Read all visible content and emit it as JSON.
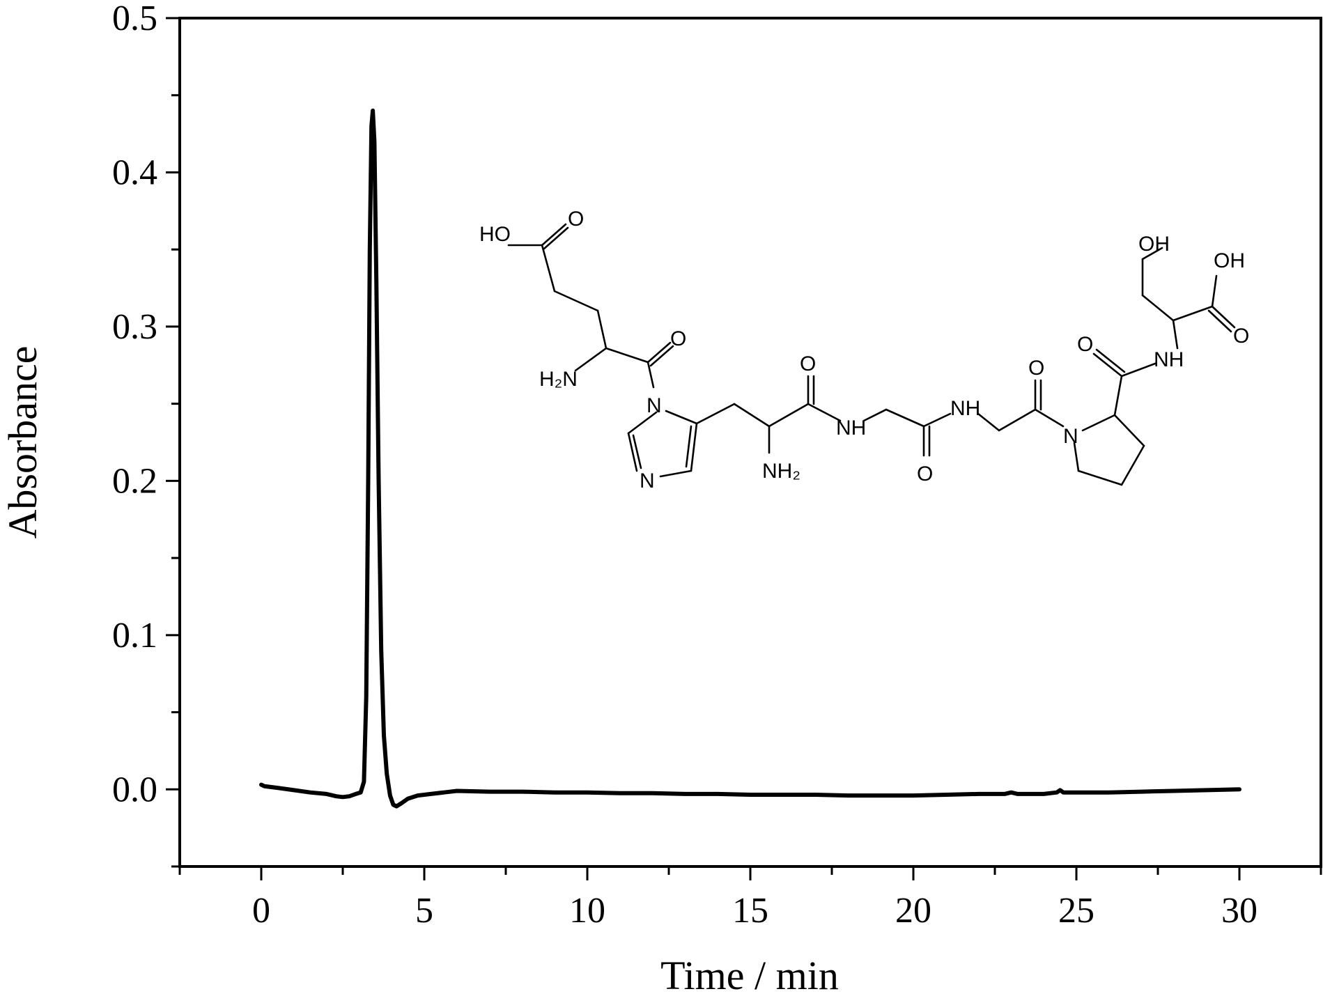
{
  "chart_data": {
    "type": "line",
    "xlabel": "Time / min",
    "ylabel": "Absorbance",
    "xlim": [
      -2.5,
      32.5
    ],
    "ylim": [
      -0.05,
      0.5
    ],
    "x_ticks": [
      0,
      5,
      10,
      15,
      20,
      25,
      30
    ],
    "x_tick_labels": [
      "0",
      "5",
      "10",
      "15",
      "20",
      "25",
      "30"
    ],
    "y_ticks": [
      0.0,
      0.1,
      0.2,
      0.3,
      0.4,
      0.5
    ],
    "y_tick_labels": [
      "0.0",
      "0.1",
      "0.2",
      "0.3",
      "0.4",
      "0.5"
    ],
    "grid": false,
    "line_color": "#000000",
    "series": [
      {
        "x": [
          0.0,
          0.1,
          0.5,
          1.0,
          1.5,
          2.0,
          2.3,
          2.5,
          2.7,
          2.9,
          3.05,
          3.15,
          3.22,
          3.28,
          3.33,
          3.38,
          3.42,
          3.47,
          3.53,
          3.6,
          3.68,
          3.76,
          3.85,
          3.95,
          4.05,
          4.15,
          4.3,
          4.5,
          4.8,
          5.2,
          5.6,
          6.0,
          7.0,
          8.0,
          9.0,
          10.0,
          11.0,
          12.0,
          13.0,
          14.0,
          15.0,
          16.0,
          17.0,
          18.0,
          19.0,
          20.0,
          21.0,
          22.0,
          22.8,
          23.0,
          23.2,
          24.0,
          24.4,
          24.5,
          24.6,
          25.0,
          26.0,
          27.0,
          28.0,
          29.0,
          30.0
        ],
        "y": [
          0.003,
          0.002,
          0.001,
          -0.0005,
          -0.002,
          -0.003,
          -0.0045,
          -0.005,
          -0.0045,
          -0.003,
          -0.002,
          0.005,
          0.06,
          0.2,
          0.35,
          0.43,
          0.44,
          0.42,
          0.33,
          0.2,
          0.09,
          0.035,
          0.01,
          -0.004,
          -0.01,
          -0.011,
          -0.009,
          -0.006,
          -0.004,
          -0.003,
          -0.002,
          -0.001,
          -0.0015,
          -0.0015,
          -0.002,
          -0.002,
          -0.0025,
          -0.0025,
          -0.003,
          -0.003,
          -0.0035,
          -0.0035,
          -0.0035,
          -0.004,
          -0.004,
          -0.004,
          -0.0035,
          -0.003,
          -0.003,
          -0.002,
          -0.003,
          -0.003,
          -0.002,
          -0.0005,
          -0.002,
          -0.002,
          -0.002,
          -0.0015,
          -0.001,
          -0.0005,
          0.0
        ]
      }
    ]
  },
  "structure_labels": {
    "ho_top": "HO",
    "o_top": "O",
    "o_glu": "O",
    "h2n": "H₂N",
    "n_imid1": "N",
    "n_imid3": "N",
    "nh2": "NH₂",
    "o_his": "O",
    "nh_1": "NH",
    "o_gly1": "O",
    "nh_2": "NH",
    "o_gly2": "O",
    "n_pro": "N",
    "o_pro": "O",
    "nh_3": "NH",
    "oh_ser": "OH",
    "oh_acid": "OH",
    "o_acid": "O"
  }
}
